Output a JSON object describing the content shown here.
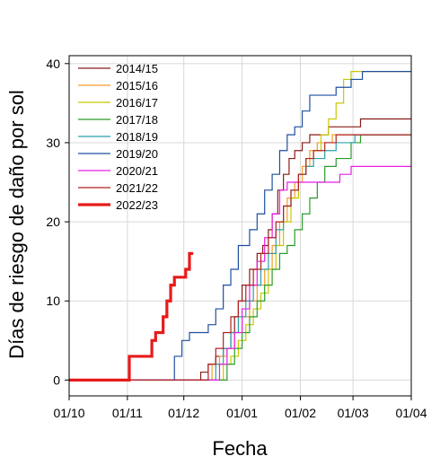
{
  "chart_data": {
    "type": "line",
    "xlabel": "Fecha",
    "ylabel": "Días de riesgo de daño por sol",
    "x_tick_labels": [
      "01/10",
      "01/11",
      "01/12",
      "01/01",
      "01/02",
      "01/03",
      "01/04"
    ],
    "x_tick_days": [
      0,
      31,
      61,
      92,
      123,
      151,
      182
    ],
    "xlim_days": [
      0,
      182
    ],
    "y_ticks": [
      0,
      10,
      20,
      30,
      40
    ],
    "ylim": [
      -2,
      41
    ],
    "grid": true,
    "legend_position": "top-left",
    "x_unit_note": "x values are days elapsed since 01/10",
    "series": [
      {
        "name": "2014/15",
        "color": "#8b1a1a",
        "width": 1.2,
        "points": [
          [
            0,
            0
          ],
          [
            68,
            0
          ],
          [
            70,
            1
          ],
          [
            72,
            1
          ],
          [
            74,
            2
          ],
          [
            78,
            3
          ],
          [
            82,
            4
          ],
          [
            86,
            6
          ],
          [
            88,
            8
          ],
          [
            90,
            10
          ],
          [
            92,
            12
          ],
          [
            96,
            14
          ],
          [
            100,
            16
          ],
          [
            103,
            17
          ],
          [
            106,
            19
          ],
          [
            108,
            21
          ],
          [
            111,
            24
          ],
          [
            114,
            26
          ],
          [
            117,
            28
          ],
          [
            120,
            29
          ],
          [
            124,
            30
          ],
          [
            128,
            31
          ],
          [
            132,
            31
          ],
          [
            138,
            32
          ],
          [
            145,
            32
          ],
          [
            150,
            32
          ],
          [
            155,
            33
          ],
          [
            182,
            33
          ]
        ]
      },
      {
        "name": "2015/16",
        "color": "#f59c2a",
        "width": 1.2,
        "points": [
          [
            0,
            0
          ],
          [
            72,
            0
          ],
          [
            76,
            2
          ],
          [
            80,
            3
          ],
          [
            84,
            4
          ],
          [
            88,
            6
          ],
          [
            92,
            8
          ],
          [
            96,
            10
          ],
          [
            100,
            12
          ],
          [
            104,
            14
          ],
          [
            108,
            17
          ],
          [
            112,
            20
          ],
          [
            116,
            23
          ],
          [
            120,
            25
          ],
          [
            124,
            27
          ],
          [
            128,
            29
          ],
          [
            132,
            30
          ],
          [
            136,
            30
          ],
          [
            140,
            31
          ],
          [
            150,
            31
          ],
          [
            182,
            31
          ]
        ]
      },
      {
        "name": "2016/17",
        "color": "#c8c800",
        "width": 1.2,
        "points": [
          [
            0,
            0
          ],
          [
            78,
            0
          ],
          [
            82,
            2
          ],
          [
            86,
            3
          ],
          [
            90,
            5
          ],
          [
            94,
            7
          ],
          [
            98,
            9
          ],
          [
            102,
            11
          ],
          [
            106,
            14
          ],
          [
            110,
            17
          ],
          [
            114,
            20
          ],
          [
            118,
            23
          ],
          [
            122,
            26
          ],
          [
            126,
            28
          ],
          [
            130,
            29
          ],
          [
            134,
            31
          ],
          [
            138,
            33
          ],
          [
            142,
            35
          ],
          [
            146,
            38
          ],
          [
            150,
            39
          ],
          [
            182,
            39
          ]
        ]
      },
      {
        "name": "2017/18",
        "color": "#2a9c2a",
        "width": 1.2,
        "points": [
          [
            0,
            0
          ],
          [
            80,
            0
          ],
          [
            84,
            2
          ],
          [
            88,
            4
          ],
          [
            92,
            6
          ],
          [
            96,
            8
          ],
          [
            100,
            10
          ],
          [
            104,
            12
          ],
          [
            108,
            14
          ],
          [
            112,
            16
          ],
          [
            116,
            17
          ],
          [
            120,
            19
          ],
          [
            124,
            21
          ],
          [
            128,
            23
          ],
          [
            132,
            25
          ],
          [
            136,
            27
          ],
          [
            142,
            28
          ],
          [
            150,
            30
          ],
          [
            155,
            31
          ],
          [
            182,
            31
          ]
        ]
      },
      {
        "name": "2018/19",
        "color": "#2aa0a8",
        "width": 1.2,
        "points": [
          [
            0,
            0
          ],
          [
            74,
            0
          ],
          [
            78,
            2
          ],
          [
            82,
            4
          ],
          [
            86,
            6
          ],
          [
            90,
            8
          ],
          [
            94,
            10
          ],
          [
            98,
            12
          ],
          [
            102,
            14
          ],
          [
            106,
            16
          ],
          [
            110,
            19
          ],
          [
            114,
            22
          ],
          [
            118,
            24
          ],
          [
            122,
            26
          ],
          [
            126,
            27
          ],
          [
            130,
            28
          ],
          [
            136,
            29
          ],
          [
            142,
            30
          ],
          [
            148,
            30
          ],
          [
            152,
            31
          ],
          [
            182,
            31
          ]
        ]
      },
      {
        "name": "2019/20",
        "color": "#1e4fa0",
        "width": 1.2,
        "points": [
          [
            0,
            0
          ],
          [
            52,
            0
          ],
          [
            56,
            3
          ],
          [
            60,
            5
          ],
          [
            64,
            6
          ],
          [
            70,
            6
          ],
          [
            74,
            7
          ],
          [
            78,
            9
          ],
          [
            82,
            12
          ],
          [
            86,
            14
          ],
          [
            90,
            17
          ],
          [
            96,
            19
          ],
          [
            100,
            21
          ],
          [
            104,
            24
          ],
          [
            108,
            26
          ],
          [
            112,
            29
          ],
          [
            116,
            31
          ],
          [
            120,
            32
          ],
          [
            124,
            34
          ],
          [
            128,
            36
          ],
          [
            136,
            36
          ],
          [
            142,
            37
          ],
          [
            150,
            38
          ],
          [
            156,
            39
          ],
          [
            182,
            39
          ]
        ]
      },
      {
        "name": "2020/21",
        "color": "#e81ee8",
        "width": 1.2,
        "points": [
          [
            0,
            0
          ],
          [
            76,
            0
          ],
          [
            80,
            2
          ],
          [
            84,
            4
          ],
          [
            88,
            6
          ],
          [
            92,
            9
          ],
          [
            96,
            12
          ],
          [
            100,
            15
          ],
          [
            104,
            18
          ],
          [
            108,
            21
          ],
          [
            112,
            24
          ],
          [
            116,
            25
          ],
          [
            120,
            25
          ],
          [
            126,
            25
          ],
          [
            132,
            25
          ],
          [
            138,
            25
          ],
          [
            144,
            26
          ],
          [
            150,
            27
          ],
          [
            182,
            27
          ]
        ]
      },
      {
        "name": "2021/22",
        "color": "#b02020",
        "width": 1.2,
        "points": [
          [
            0,
            0
          ],
          [
            70,
            0
          ],
          [
            74,
            2
          ],
          [
            78,
            4
          ],
          [
            82,
            6
          ],
          [
            86,
            8
          ],
          [
            90,
            10
          ],
          [
            94,
            12
          ],
          [
            98,
            14
          ],
          [
            102,
            16
          ],
          [
            106,
            18
          ],
          [
            110,
            20
          ],
          [
            114,
            22
          ],
          [
            118,
            24
          ],
          [
            122,
            26
          ],
          [
            126,
            28
          ],
          [
            130,
            29
          ],
          [
            136,
            30
          ],
          [
            142,
            31
          ],
          [
            150,
            31
          ],
          [
            182,
            31
          ]
        ]
      },
      {
        "name": "2022/23",
        "color": "#e81a1a",
        "width": 3.2,
        "points": [
          [
            0,
            0
          ],
          [
            30,
            0
          ],
          [
            32,
            3
          ],
          [
            40,
            3
          ],
          [
            42,
            3
          ],
          [
            44,
            5
          ],
          [
            46,
            6
          ],
          [
            48,
            6
          ],
          [
            50,
            8
          ],
          [
            52,
            10
          ],
          [
            54,
            12
          ],
          [
            56,
            13
          ],
          [
            60,
            13
          ],
          [
            62,
            14
          ],
          [
            64,
            16
          ],
          [
            66,
            16
          ]
        ]
      }
    ]
  }
}
